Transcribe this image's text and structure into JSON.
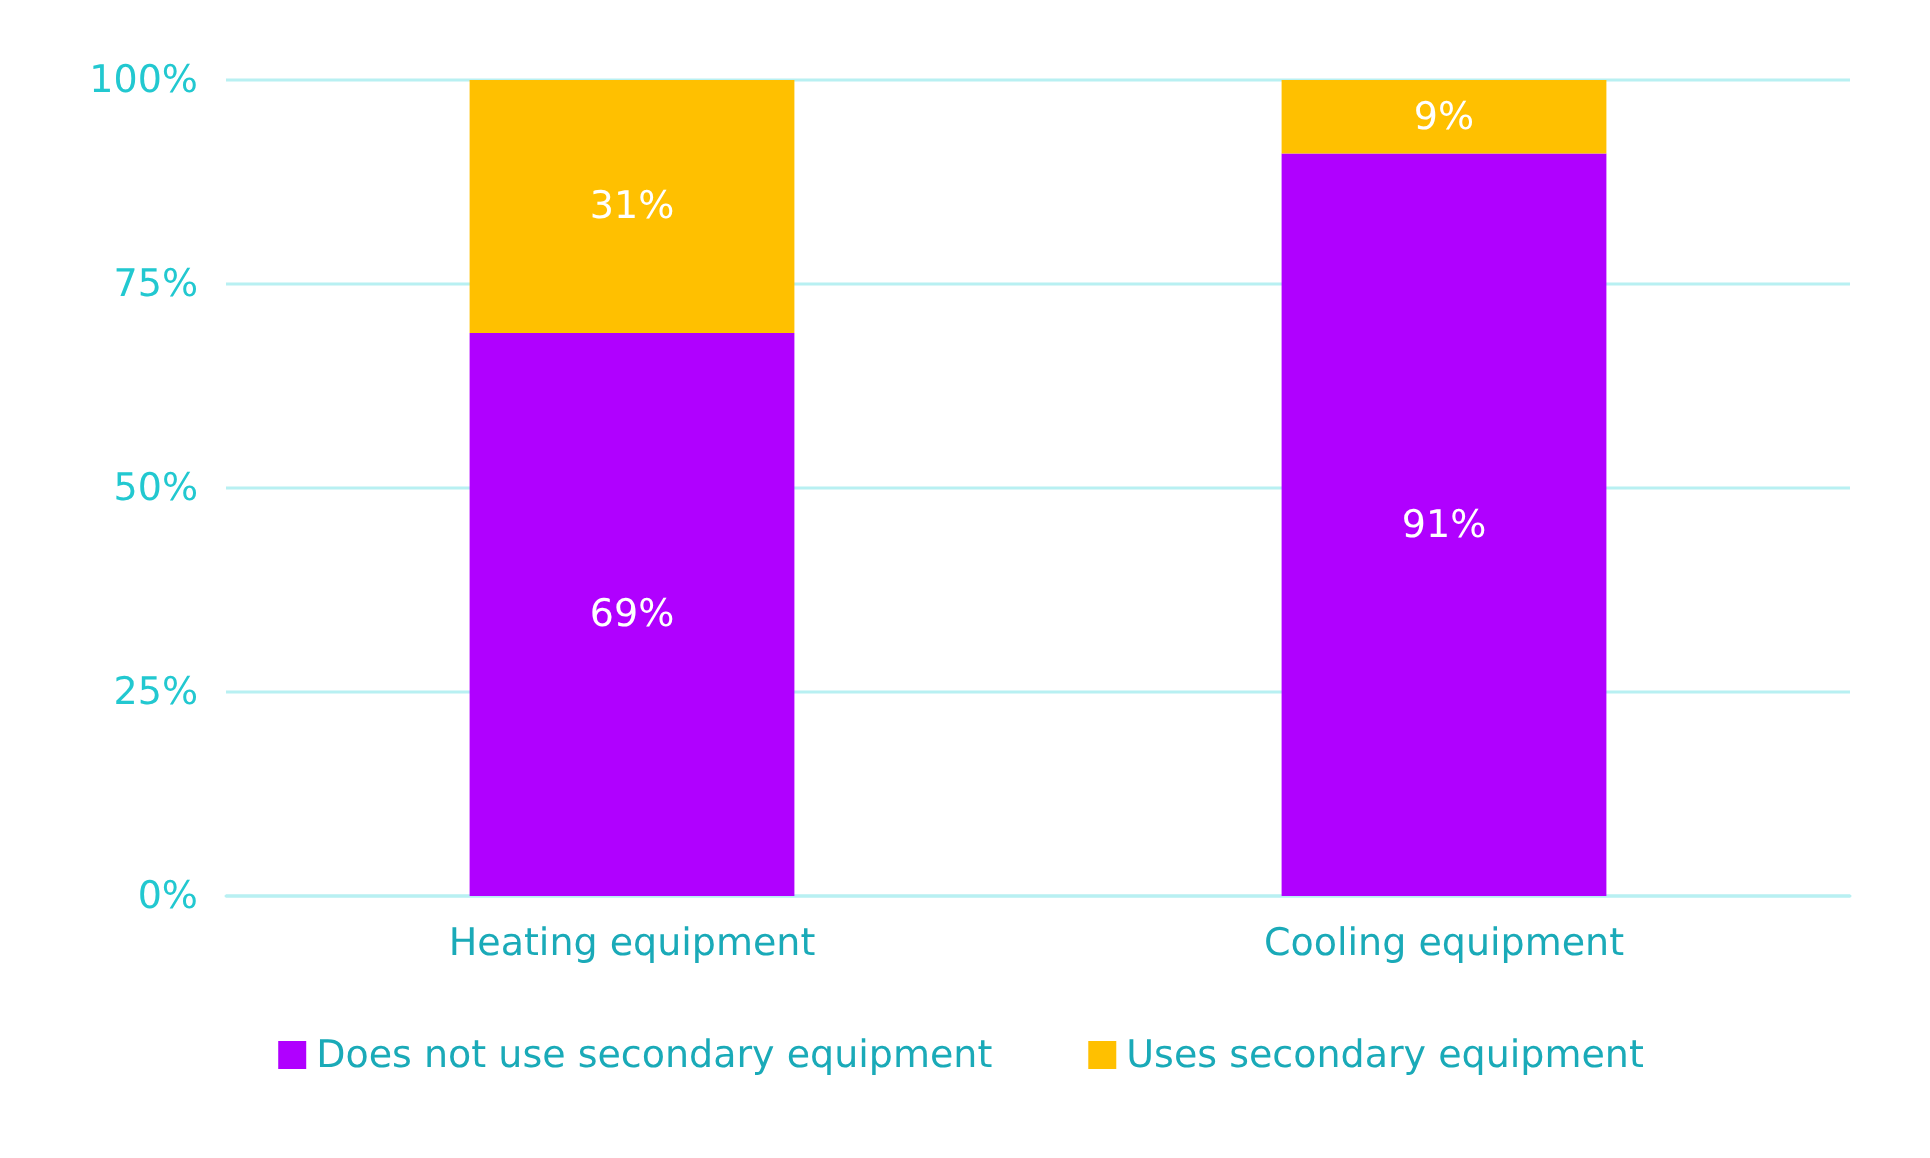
{
  "chart_data": {
    "type": "bar",
    "stacked": true,
    "categories": [
      "Heating equipment",
      "Cooling equipment"
    ],
    "series": [
      {
        "name": "Does not use secondary equipment",
        "color": "#b000ff",
        "values": [
          69,
          91
        ],
        "value_labels": [
          "69%",
          "91%"
        ]
      },
      {
        "name": "Uses secondary equipment",
        "color": "#ffc000",
        "values": [
          31,
          9
        ],
        "value_labels": [
          "31%",
          "9%"
        ]
      }
    ],
    "ylim": [
      0,
      100
    ],
    "yticks": [
      {
        "value": 0,
        "label": "0%"
      },
      {
        "value": 25,
        "label": "25%"
      },
      {
        "value": 50,
        "label": "50%"
      },
      {
        "value": 75,
        "label": "75%"
      },
      {
        "value": 100,
        "label": "100%"
      }
    ],
    "grid": "y",
    "legend": "bottom"
  }
}
